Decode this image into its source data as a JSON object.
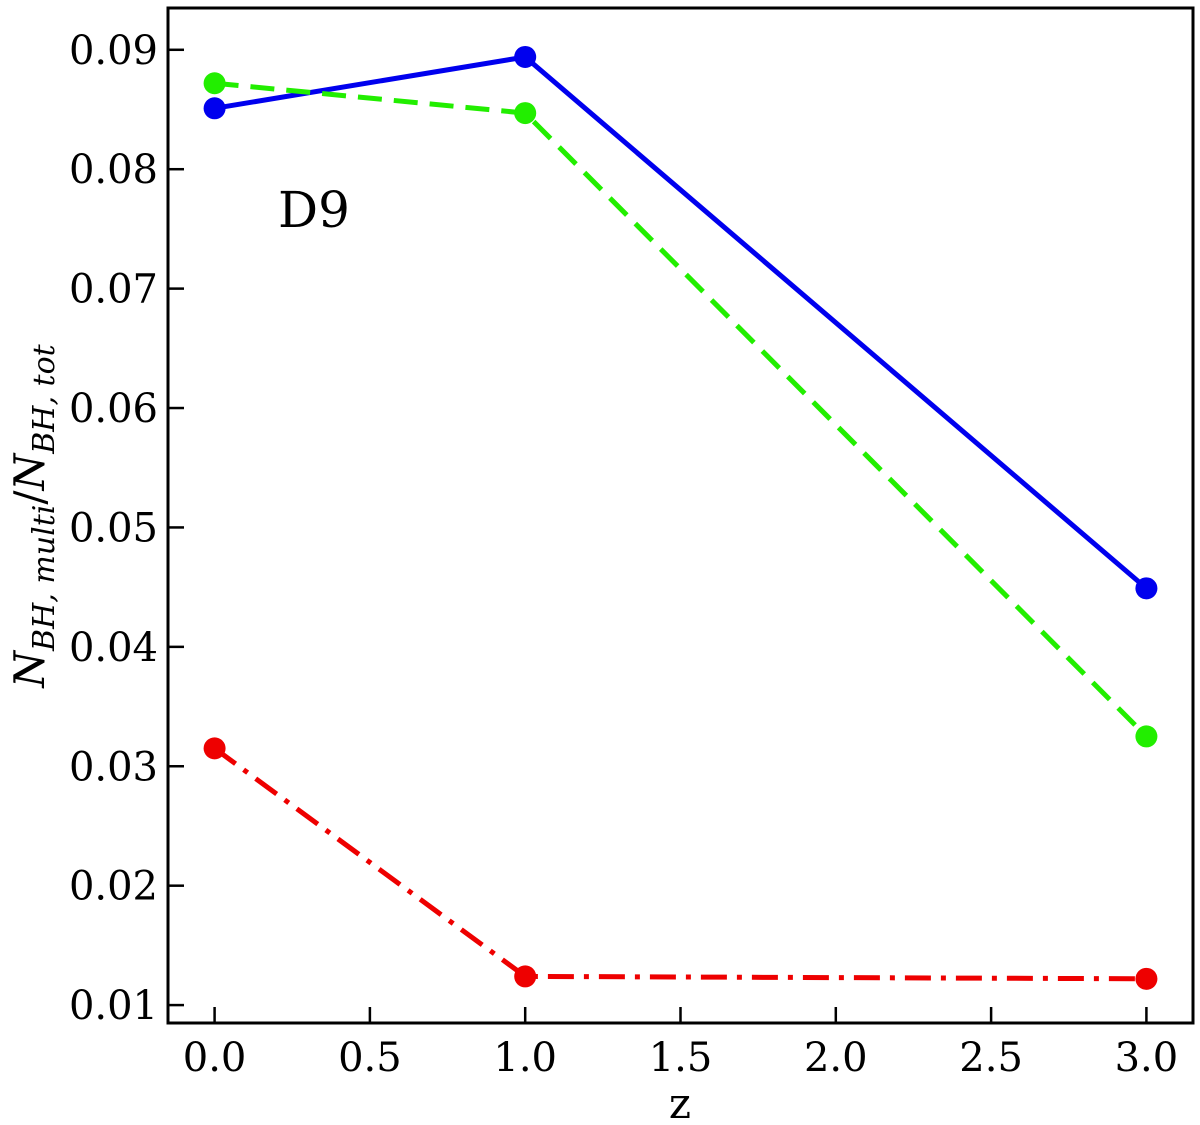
{
  "chart_data": {
    "type": "line",
    "title": "",
    "xlabel": "z",
    "ylabel": {
      "base": "N",
      "numerator_sub": "BH, multi",
      "separator": "/",
      "denominator_base": "N",
      "denominator_sub": "BH, tot"
    },
    "annotations": [
      "D9"
    ],
    "xlim": [
      -0.15,
      3.15
    ],
    "ylim": [
      0.0085,
      0.0935
    ],
    "x_ticks": [
      0.0,
      0.5,
      1.0,
      1.5,
      2.0,
      2.5,
      3.0
    ],
    "x_tick_labels": [
      "0.0",
      "0.5",
      "1.0",
      "1.5",
      "2.0",
      "2.5",
      "3.0"
    ],
    "y_ticks": [
      0.01,
      0.02,
      0.03,
      0.04,
      0.05,
      0.06,
      0.07,
      0.08,
      0.09
    ],
    "y_tick_labels": [
      "0.01",
      "0.02",
      "0.03",
      "0.04",
      "0.05",
      "0.06",
      "0.07",
      "0.08",
      "0.09"
    ],
    "grid": false,
    "legend": "none",
    "series": [
      {
        "x": [
          0.0,
          1.0,
          3.0
        ],
        "values": [
          0.0851,
          0.0894,
          0.0449
        ],
        "color": "#0000ee",
        "line_style": "solid"
      },
      {
        "x": [
          0.0,
          1.0,
          3.0
        ],
        "values": [
          0.0872,
          0.0847,
          0.0325
        ],
        "color": "#22ee00",
        "line_style": "dashed"
      },
      {
        "x": [
          0.0,
          1.0,
          3.0
        ],
        "values": [
          0.0315,
          0.0124,
          0.0122
        ],
        "color": "#ee0000",
        "line_style": "dashdot"
      }
    ]
  }
}
